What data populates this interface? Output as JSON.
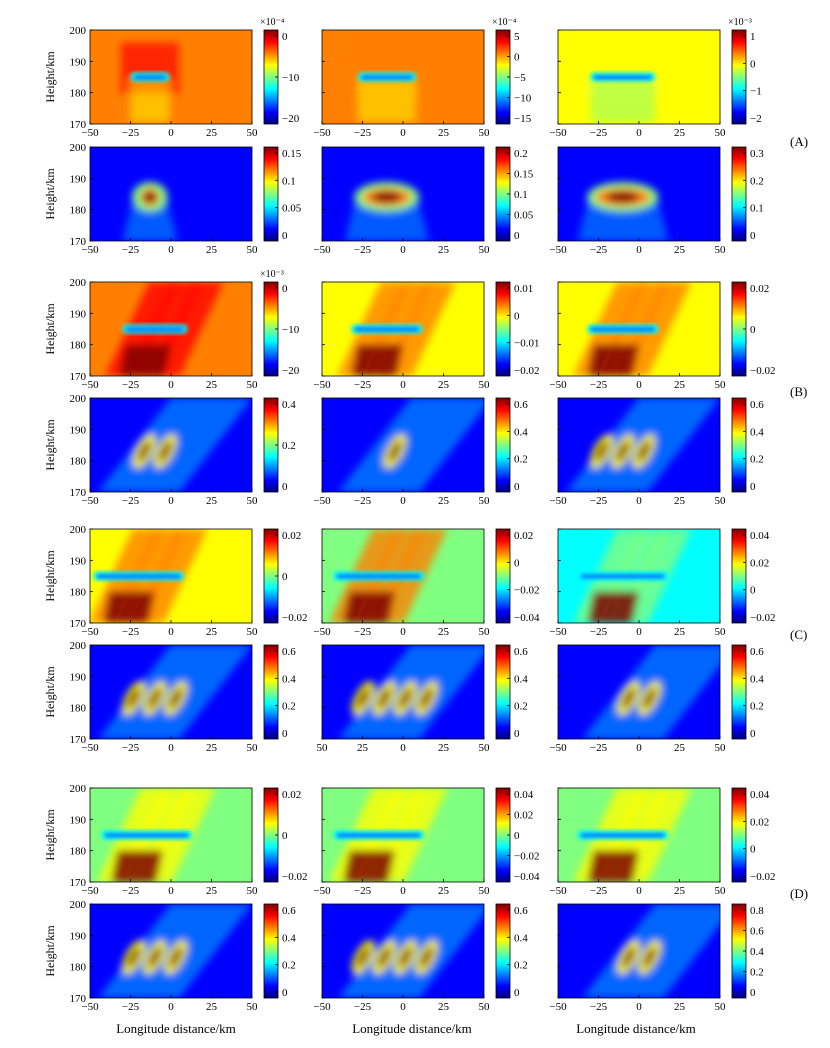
{
  "colors": {
    "jet": [
      "#00007f",
      "#0000ff",
      "#0080ff",
      "#00ffff",
      "#80ff80",
      "#ffff00",
      "#ff8000",
      "#ff0000",
      "#7f0000"
    ]
  },
  "figure": {
    "group_labels": [
      "(A)",
      "(B)",
      "(C)",
      "(D)"
    ],
    "x_axis_title": "Longitude distance/km",
    "y_axis_title": "Height/km"
  },
  "chart_data": {
    "type": "heatmap",
    "x_ticks": [
      "−50",
      "−25",
      "0",
      "25",
      "50"
    ],
    "x_ticks_alt": [
      "50",
      "25",
      "0",
      "25",
      "50"
    ],
    "y_ticks": [
      "170",
      "180",
      "190",
      "200"
    ],
    "xlim": [
      -50,
      50
    ],
    "ylim": [
      170,
      200
    ],
    "panels": [
      {
        "id": "A1",
        "group": "A",
        "pos": [
          0,
          0
        ],
        "kind": "perturb",
        "bg": 0.78,
        "tilt": 0,
        "cx": -13,
        "w": 24,
        "cb": {
          "exp": "×10⁻⁴",
          "ticks": [
            "0",
            "−10",
            "−20"
          ]
        }
      },
      {
        "id": "A2",
        "group": "A",
        "pos": [
          1,
          0
        ],
        "kind": "perturb",
        "bg": 0.72,
        "tilt": 0,
        "cx": -10,
        "w": 36,
        "cb": {
          "exp": "×10⁻⁴",
          "ticks": [
            "5",
            "0",
            "−5",
            "−10",
            "−15"
          ]
        }
      },
      {
        "id": "A3",
        "group": "A",
        "pos": [
          2,
          0
        ],
        "kind": "perturb",
        "bg": 0.6,
        "tilt": 0,
        "cx": -10,
        "w": 40,
        "cb": {
          "exp": "×10⁻³",
          "ticks": [
            "1",
            "0",
            "−1",
            "−2"
          ]
        }
      },
      {
        "id": "A4",
        "group": "A",
        "pos": [
          0,
          1
        ],
        "kind": "blob",
        "tilt": 0,
        "cx": -13,
        "w": 18,
        "cb": {
          "exp": "",
          "ticks": [
            "0.15",
            "0.1",
            "0.05",
            "0"
          ]
        }
      },
      {
        "id": "A5",
        "group": "A",
        "pos": [
          1,
          1
        ],
        "kind": "blob",
        "tilt": 0,
        "cx": -10,
        "w": 36,
        "cb": {
          "exp": "",
          "ticks": [
            "0.2",
            "0.15",
            "0.1",
            "0.05",
            "0"
          ]
        }
      },
      {
        "id": "A6",
        "group": "A",
        "pos": [
          2,
          1
        ],
        "kind": "blob",
        "tilt": 0,
        "cx": -10,
        "w": 40,
        "cb": {
          "exp": "",
          "ticks": [
            "0.3",
            "0.2",
            "0.1",
            "0"
          ]
        }
      },
      {
        "id": "B1",
        "group": "B",
        "pos": [
          0,
          2
        ],
        "kind": "perturb",
        "bg": 0.72,
        "tilt": 1,
        "cx": -10,
        "w": 40,
        "cb": {
          "exp": "×10⁻³",
          "ticks": [
            "0",
            "−10",
            "−20"
          ]
        }
      },
      {
        "id": "B2",
        "group": "B",
        "pos": [
          1,
          2
        ],
        "kind": "perturb",
        "bg": 0.62,
        "tilt": 1,
        "cx": -10,
        "w": 44,
        "cb": {
          "exp": "",
          "ticks": [
            "0.01",
            "0",
            "−0.01",
            "−0.02"
          ]
        }
      },
      {
        "id": "B3",
        "group": "B",
        "pos": [
          2,
          2
        ],
        "kind": "perturb",
        "bg": 0.62,
        "tilt": 1,
        "cx": -10,
        "w": 44,
        "cb": {
          "exp": "",
          "ticks": [
            "0.02",
            "0",
            "−0.02"
          ]
        }
      },
      {
        "id": "B4",
        "group": "B",
        "pos": [
          0,
          3
        ],
        "kind": "waves",
        "tilt": 1,
        "cx": -10,
        "n": 2,
        "cb": {
          "exp": "",
          "ticks": [
            "0.4",
            "0.2",
            "0"
          ]
        }
      },
      {
        "id": "B5",
        "group": "B",
        "pos": [
          1,
          3
        ],
        "kind": "waves",
        "tilt": 1,
        "cx": -5,
        "n": 1,
        "cb": {
          "exp": "",
          "ticks": [
            "0.6",
            "0.4",
            "0.2",
            "0"
          ]
        }
      },
      {
        "id": "B6",
        "group": "B",
        "pos": [
          2,
          3
        ],
        "kind": "waves",
        "tilt": 1,
        "cx": -10,
        "n": 3,
        "cb": {
          "exp": "",
          "ticks": [
            "0.6",
            "0.4",
            "0.2",
            "0"
          ]
        }
      },
      {
        "id": "C1",
        "group": "C",
        "pos": [
          0,
          4
        ],
        "kind": "perturb",
        "bg": 0.58,
        "tilt": 1,
        "cx": -20,
        "w": 56,
        "cb": {
          "exp": "",
          "ticks": [
            "0.02",
            "0",
            "−0.02"
          ]
        }
      },
      {
        "id": "C2",
        "group": "C",
        "pos": [
          1,
          4
        ],
        "kind": "perturb",
        "bg": 0.56,
        "tilt": 1,
        "cx": -15,
        "w": 56,
        "cb": {
          "exp": "",
          "ticks": [
            "0.02",
            "0",
            "−0.02",
            "−0.04"
          ]
        }
      },
      {
        "id": "C3",
        "group": "C",
        "pos": [
          2,
          4
        ],
        "kind": "perturb",
        "bg": 0.4,
        "tilt": 1,
        "cx": -10,
        "w": 56,
        "cb": {
          "exp": "",
          "ticks": [
            "0.04",
            "0.02",
            "0",
            "−0.02"
          ]
        }
      },
      {
        "id": "C4",
        "group": "C",
        "pos": [
          0,
          5
        ],
        "kind": "waves",
        "tilt": 1,
        "cx": -10,
        "n": 3,
        "cb": {
          "exp": "",
          "ticks": [
            "0.6",
            "0.4",
            "0.2",
            "0"
          ]
        }
      },
      {
        "id": "C5",
        "group": "C",
        "pos": [
          1,
          5
        ],
        "kind": "waves",
        "tilt": 1,
        "cx": -5,
        "n": 4,
        "alt": true,
        "cb": {
          "exp": "",
          "ticks": [
            "0.6",
            "0.4",
            "0.2",
            "0"
          ]
        }
      },
      {
        "id": "C6",
        "group": "C",
        "pos": [
          2,
          5
        ],
        "kind": "waves",
        "tilt": 1,
        "cx": 0,
        "n": 2,
        "cb": {
          "exp": "",
          "ticks": [
            "0.6",
            "0.4",
            "0.2",
            "0"
          ]
        }
      },
      {
        "id": "D1",
        "group": "D",
        "pos": [
          0,
          6
        ],
        "kind": "perturb",
        "bg": 0.52,
        "tilt": 1,
        "cx": -15,
        "w": 56,
        "cb": {
          "exp": "",
          "ticks": [
            "0.02",
            "0",
            "−0.02"
          ]
        }
      },
      {
        "id": "D2",
        "group": "D",
        "pos": [
          1,
          6
        ],
        "kind": "perturb",
        "bg": 0.52,
        "tilt": 1,
        "cx": -15,
        "w": 56,
        "cb": {
          "exp": "",
          "ticks": [
            "0.04",
            "0.02",
            "0",
            "−0.02",
            "−0.04"
          ]
        }
      },
      {
        "id": "D3",
        "group": "D",
        "pos": [
          2,
          6
        ],
        "kind": "perturb",
        "bg": 0.45,
        "tilt": 1,
        "cx": -10,
        "w": 56,
        "cb": {
          "exp": "",
          "ticks": [
            "0.04",
            "0.02",
            "0",
            "−0.02"
          ]
        }
      },
      {
        "id": "D4",
        "group": "D",
        "pos": [
          0,
          7
        ],
        "kind": "waves",
        "tilt": 1,
        "cx": -10,
        "n": 3,
        "cb": {
          "exp": "",
          "ticks": [
            "0.6",
            "0.4",
            "0.2",
            "0"
          ]
        }
      },
      {
        "id": "D5",
        "group": "D",
        "pos": [
          1,
          7
        ],
        "kind": "waves",
        "tilt": 1,
        "cx": -5,
        "n": 4,
        "cb": {
          "exp": "",
          "ticks": [
            "0.6",
            "0.4",
            "0.2",
            "0"
          ]
        }
      },
      {
        "id": "D6",
        "group": "D",
        "pos": [
          2,
          7
        ],
        "kind": "waves",
        "tilt": 1,
        "cx": 0,
        "n": 2,
        "cb": {
          "exp": "",
          "ticks": [
            "0.8",
            "0.6",
            "0.4",
            "0.2",
            "0"
          ]
        }
      }
    ]
  }
}
